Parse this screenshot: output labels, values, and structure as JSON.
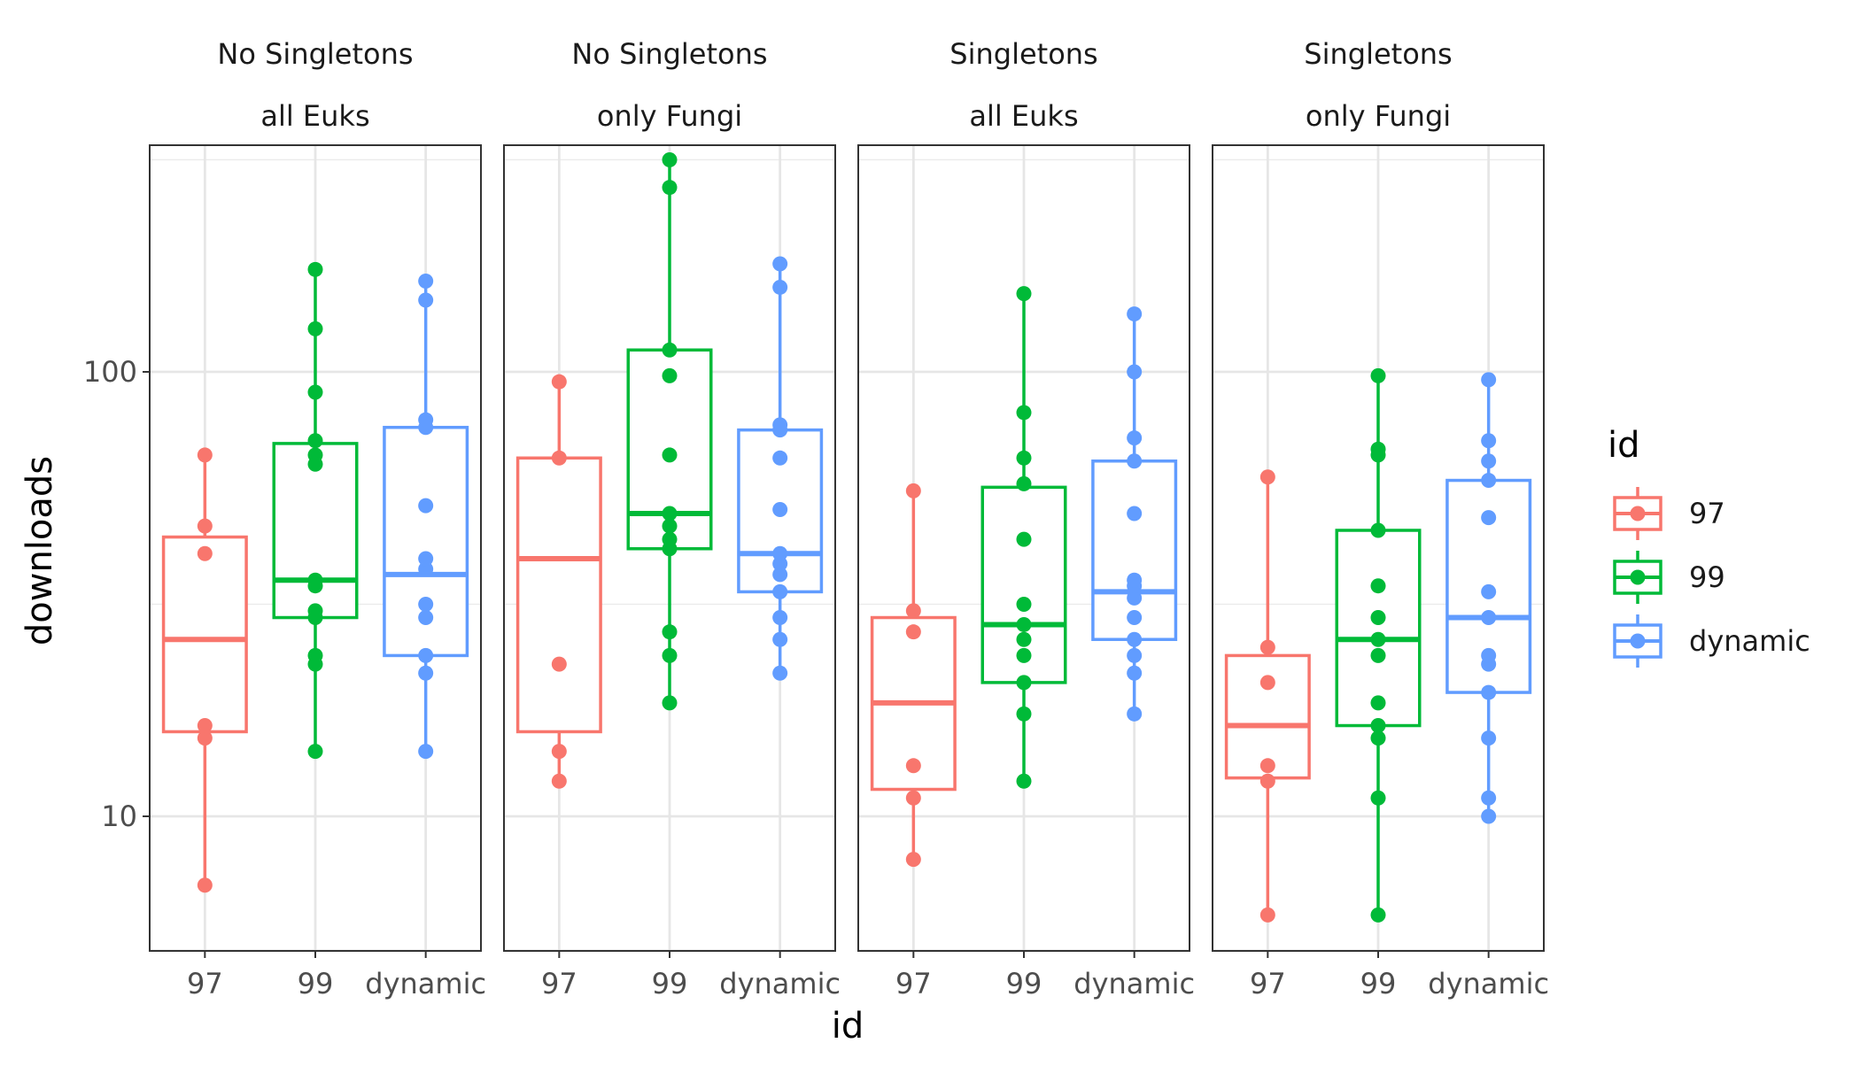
{
  "chart_data": {
    "type": "boxplot",
    "y_scale": "log10",
    "ylim": [
      5,
      300
    ],
    "xlabel": "id",
    "ylabel": "downloads",
    "categories": [
      "97",
      "99",
      "dynamic"
    ],
    "y_ticks": [
      10,
      100
    ],
    "y_tick_labels": [
      "10",
      "100"
    ],
    "grid": true,
    "legend": {
      "title": "id",
      "position": "right",
      "entries": [
        "97",
        "99",
        "dynamic"
      ]
    },
    "colors": {
      "97": "#F8766D",
      "99": "#00BA38",
      "dynamic": "#619CFF"
    },
    "facets": [
      {
        "strip_line1": "No Singletons",
        "strip_line2": "all Euks",
        "groups": [
          {
            "id": "97",
            "min": 7,
            "q1": 15.5,
            "median": 25,
            "q3": 42.5,
            "max": 65,
            "points": [
              7,
              15,
              16,
              39,
              45,
              65
            ]
          },
          {
            "id": "99",
            "min": 14,
            "q1": 28,
            "median": 34,
            "q3": 69,
            "max": 170,
            "points": [
              14,
              22,
              23,
              28,
              29,
              33,
              34,
              62,
              65,
              70,
              90,
              125,
              170
            ]
          },
          {
            "id": "dynamic",
            "min": 14,
            "q1": 23,
            "median": 35,
            "q3": 75,
            "max": 160,
            "points": [
              14,
              21,
              23,
              28,
              30,
              36,
              38,
              50,
              75,
              78,
              145,
              160
            ]
          }
        ]
      },
      {
        "strip_line1": "No Singletons",
        "strip_line2": "only Fungi",
        "groups": [
          {
            "id": "97",
            "min": 12,
            "q1": 15.5,
            "median": 38,
            "q3": 64,
            "max": 95,
            "points": [
              12,
              14,
              22,
              64,
              95
            ]
          },
          {
            "id": "99",
            "min": 18,
            "q1": 40,
            "median": 48,
            "q3": 112,
            "max": 300,
            "points": [
              18,
              23,
              26,
              40,
              42,
              45,
              48,
              65,
              98,
              112,
              260,
              300
            ]
          },
          {
            "id": "dynamic",
            "min": 21,
            "q1": 32,
            "median": 39,
            "q3": 74,
            "max": 175,
            "points": [
              21,
              25,
              28,
              32,
              35,
              37,
              39,
              49,
              64,
              74,
              76,
              155,
              175
            ]
          }
        ]
      },
      {
        "strip_line1": "Singletons",
        "strip_line2": "all Euks",
        "groups": [
          {
            "id": "97",
            "min": 8,
            "q1": 11.5,
            "median": 18,
            "q3": 28,
            "max": 54,
            "points": [
              8,
              11,
              13,
              26,
              29,
              54
            ]
          },
          {
            "id": "99",
            "min": 12,
            "q1": 20,
            "median": 27,
            "q3": 55,
            "max": 150,
            "points": [
              12,
              17,
              20,
              23,
              25,
              27,
              30,
              42,
              56,
              64,
              81,
              150
            ]
          },
          {
            "id": "dynamic",
            "min": 17,
            "q1": 25,
            "median": 32,
            "q3": 63,
            "max": 135,
            "points": [
              17,
              21,
              23,
              25,
              28,
              31,
              33,
              34,
              48,
              63,
              71,
              100,
              135
            ]
          }
        ]
      },
      {
        "strip_line1": "Singletons",
        "strip_line2": "only Fungi",
        "groups": [
          {
            "id": "97",
            "min": 6,
            "q1": 12.2,
            "median": 16,
            "q3": 23,
            "max": 58,
            "points": [
              6,
              12,
              13,
              20,
              24,
              58
            ]
          },
          {
            "id": "99",
            "min": 6,
            "q1": 16,
            "median": 25,
            "q3": 44,
            "max": 98,
            "points": [
              6,
              11,
              15,
              16,
              18,
              23,
              25,
              28,
              33,
              44,
              65,
              67,
              98
            ]
          },
          {
            "id": "dynamic",
            "min": 10,
            "q1": 19,
            "median": 28,
            "q3": 57,
            "max": 96,
            "points": [
              10,
              11,
              15,
              19,
              22,
              23,
              28,
              32,
              47,
              57,
              63,
              70,
              96
            ]
          }
        ]
      }
    ]
  }
}
